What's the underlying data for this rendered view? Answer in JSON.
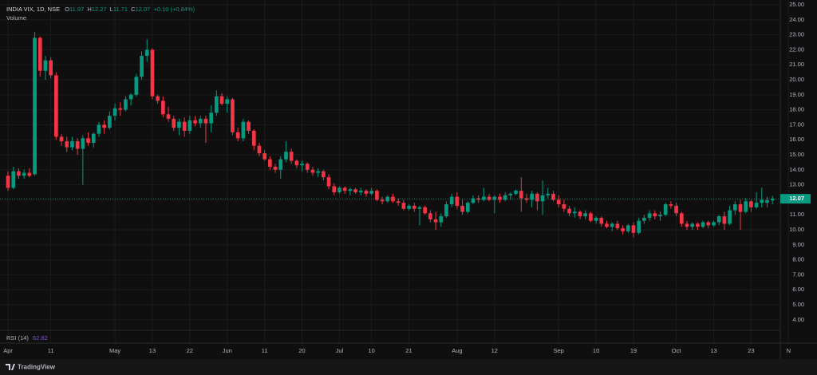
{
  "chart_data": {
    "type": "candlestick",
    "legend": {
      "symbol": "INDIA VIX, 1D, NSE",
      "open_label": "O",
      "high_label": "H",
      "low_label": "L",
      "close_label": "C",
      "change": "+0.10 (+0.84%)",
      "volume": "Volume"
    },
    "rsi": {
      "label": "RSI (14)",
      "value": 62.82
    },
    "brand": "TradingView",
    "up_color": "#089981",
    "down_color": "#f23645",
    "grid": true,
    "xlim": [
      -1.5,
      147
    ],
    "ylim": [
      3.35,
      25.32
    ],
    "yticks": [
      {
        "value": 4,
        "label": "4.00"
      },
      {
        "value": 5,
        "label": "5.00"
      },
      {
        "value": 6,
        "label": "6.00"
      },
      {
        "value": 7,
        "label": "7.00"
      },
      {
        "value": 8,
        "label": "8.00"
      },
      {
        "value": 9,
        "label": "9.00"
      },
      {
        "value": 10,
        "label": "10.00"
      },
      {
        "value": 11,
        "label": "11.00"
      },
      {
        "value": 12,
        "label": "12.00"
      },
      {
        "value": 13,
        "label": "13.00"
      },
      {
        "value": 14,
        "label": "14.00"
      },
      {
        "value": 15,
        "label": "15.00"
      },
      {
        "value": 16,
        "label": "16.00"
      },
      {
        "value": 17,
        "label": "17.00"
      },
      {
        "value": 18,
        "label": "18.00"
      },
      {
        "value": 19,
        "label": "19.00"
      },
      {
        "value": 20,
        "label": "20.00"
      },
      {
        "value": 21,
        "label": "21.00"
      },
      {
        "value": 22,
        "label": "22.00"
      },
      {
        "value": 23,
        "label": "23.00"
      },
      {
        "value": 24,
        "label": "24.00"
      },
      {
        "value": 25,
        "label": "25.00"
      }
    ],
    "xticks": [
      {
        "value": 0,
        "label": "Apr"
      },
      {
        "value": 8,
        "label": "11"
      },
      {
        "value": 20,
        "label": "May"
      },
      {
        "value": 27,
        "label": "13"
      },
      {
        "value": 34,
        "label": "22"
      },
      {
        "value": 41,
        "label": "Jun"
      },
      {
        "value": 48,
        "label": "11"
      },
      {
        "value": 55,
        "label": "20"
      },
      {
        "value": 62,
        "label": "Jul"
      },
      {
        "value": 68,
        "label": "10"
      },
      {
        "value": 75,
        "label": "21"
      },
      {
        "value": 84,
        "label": "Aug"
      },
      {
        "value": 91,
        "label": "12"
      },
      {
        "value": 103,
        "label": "Sep"
      },
      {
        "value": 110,
        "label": "10"
      },
      {
        "value": 117,
        "label": "19"
      },
      {
        "value": 125,
        "label": "Oct"
      },
      {
        "value": 132,
        "label": "13"
      },
      {
        "value": 139,
        "label": "23"
      },
      {
        "value": 146,
        "label": "N"
      }
    ],
    "open": [
      13.6,
      12.8,
      13.9,
      13.6,
      13.8,
      13.7,
      22.8,
      20.6,
      21.3,
      20.3,
      16.2,
      15.9,
      15.5,
      15.9,
      15.4,
      16.1,
      15.8,
      16.4,
      17.0,
      16.8,
      17.6,
      18.1,
      18.0,
      18.7,
      19.0,
      20.2,
      21.6,
      22.0,
      18.9,
      18.6,
      17.7,
      17.4,
      16.8,
      17.2,
      16.6,
      17.3,
      17.1,
      17.4,
      17.1,
      17.8,
      18.9,
      18.4,
      18.7,
      16.5,
      16.1,
      17.2,
      16.6,
      15.6,
      15.1,
      14.7,
      14.2,
      14.0,
      14.7,
      15.2,
      14.6,
      14.3,
      14.4,
      14.0,
      13.8,
      13.9,
      13.5,
      12.9,
      12.5,
      12.8,
      12.6,
      12.7,
      12.5,
      12.6,
      12.4,
      12.6,
      12.0,
      11.9,
      12.2,
      11.9,
      11.8,
      11.4,
      11.6,
      11.4,
      11.5,
      11.1,
      10.7,
      10.5,
      10.9,
      11.7,
      12.2,
      11.6,
      11.2,
      11.8,
      12.1,
      12.0,
      12.2,
      12.0,
      12.2,
      12.0,
      12.3,
      12.4,
      12.6,
      12.1,
      12.0,
      12.4,
      11.9,
      12.3,
      12.4,
      12.0,
      11.7,
      11.4,
      11.1,
      11.2,
      10.9,
      11.1,
      10.6,
      10.8,
      10.4,
      10.2,
      10.4,
      10.1,
      9.9,
      10.3,
      9.8,
      10.6,
      10.8,
      11.1,
      10.9,
      11.0,
      11.7,
      11.6,
      11.1,
      10.4,
      10.2,
      10.4,
      10.2,
      10.5,
      10.3,
      10.5,
      10.9,
      10.4,
      11.3,
      11.7,
      11.2,
      11.9,
      11.5,
      11.8,
      11.8,
      11.97
    ],
    "high": [
      13.9,
      14.2,
      14.1,
      14.0,
      14.1,
      23.2,
      22.9,
      21.6,
      21.5,
      20.5,
      16.4,
      16.2,
      16.2,
      16.1,
      16.3,
      16.5,
      16.5,
      17.2,
      17.3,
      17.9,
      18.4,
      18.5,
      18.9,
      19.1,
      20.4,
      21.9,
      22.7,
      22.1,
      19.0,
      18.9,
      18.2,
      17.6,
      17.4,
      17.5,
      17.6,
      17.6,
      17.6,
      17.6,
      18.3,
      19.3,
      19.1,
      18.9,
      18.8,
      16.8,
      17.4,
      17.3,
      16.7,
      15.8,
      15.3,
      14.9,
      14.4,
      14.9,
      15.9,
      15.4,
      14.7,
      14.6,
      14.5,
      14.2,
      14.1,
      14.0,
      13.7,
      13.1,
      12.9,
      12.9,
      12.8,
      12.8,
      12.8,
      12.7,
      12.8,
      12.7,
      12.2,
      12.3,
      12.4,
      12.1,
      12.0,
      11.7,
      11.8,
      11.6,
      11.6,
      11.3,
      11.2,
      11.1,
      11.9,
      12.4,
      12.5,
      12.0,
      11.9,
      12.3,
      12.3,
      12.8,
      12.4,
      12.3,
      12.4,
      12.5,
      12.5,
      12.7,
      13.5,
      12.4,
      12.6,
      12.5,
      13.3,
      12.8,
      12.6,
      12.3,
      12.0,
      11.6,
      11.5,
      11.3,
      11.3,
      11.2,
      10.9,
      10.9,
      10.6,
      10.5,
      10.6,
      10.3,
      10.4,
      10.5,
      10.8,
      11.0,
      11.3,
      11.3,
      11.2,
      11.8,
      11.9,
      11.8,
      11.2,
      10.6,
      10.5,
      10.5,
      10.6,
      10.6,
      10.6,
      11.0,
      11.2,
      11.6,
      11.9,
      12.0,
      12.1,
      12.0,
      12.5,
      12.8,
      12.2,
      12.27
    ],
    "low": [
      12.6,
      12.7,
      13.4,
      13.4,
      13.5,
      13.6,
      20.2,
      20.0,
      20.1,
      16.0,
      15.6,
      15.2,
      15.3,
      15.0,
      13.0,
      15.6,
      15.5,
      16.2,
      16.4,
      16.7,
      17.3,
      17.6,
      17.9,
      18.3,
      18.9,
      20.0,
      21.2,
      18.7,
      18.4,
      17.5,
      17.2,
      16.6,
      16.3,
      16.2,
      16.4,
      16.9,
      16.8,
      15.8,
      16.5,
      17.6,
      18.3,
      17.8,
      16.3,
      15.9,
      15.9,
      16.4,
      15.3,
      14.9,
      14.6,
      14.0,
      13.8,
      13.4,
      14.5,
      14.4,
      14.1,
      13.9,
      13.8,
      13.6,
      13.5,
      13.3,
      12.7,
      12.3,
      12.4,
      12.4,
      12.3,
      12.4,
      12.3,
      12.2,
      12.3,
      11.9,
      11.7,
      11.8,
      11.8,
      11.6,
      11.3,
      11.3,
      11.2,
      10.3,
      11.0,
      10.5,
      10.0,
      10.2,
      10.8,
      11.5,
      11.4,
      11.0,
      11.1,
      11.7,
      11.8,
      11.9,
      11.9,
      11.1,
      11.8,
      11.9,
      12.0,
      12.3,
      11.2,
      11.8,
      11.5,
      11.3,
      11.0,
      12.1,
      11.9,
      11.5,
      11.2,
      10.9,
      10.8,
      10.7,
      10.7,
      10.5,
      10.4,
      10.2,
      10.1,
      9.9,
      10.0,
      9.7,
      9.8,
      9.5,
      9.7,
      10.4,
      10.6,
      10.7,
      10.6,
      10.9,
      11.4,
      10.9,
      10.2,
      10.0,
      10.0,
      10.0,
      10.1,
      10.1,
      10.2,
      10.3,
      10.0,
      10.3,
      11.0,
      10.0,
      11.1,
      11.2,
      11.4,
      11.5,
      11.5,
      11.71
    ],
    "close": [
      12.8,
      13.9,
      13.6,
      13.8,
      13.6,
      22.8,
      20.6,
      21.3,
      20.3,
      16.2,
      15.9,
      15.5,
      15.9,
      15.4,
      16.1,
      15.8,
      16.4,
      17.0,
      16.8,
      17.6,
      18.1,
      18.0,
      18.7,
      19.0,
      20.2,
      21.6,
      22.0,
      18.9,
      18.6,
      17.7,
      17.4,
      16.8,
      17.2,
      16.6,
      17.3,
      17.1,
      17.4,
      17.1,
      17.8,
      18.9,
      18.4,
      18.7,
      16.5,
      16.1,
      17.2,
      16.6,
      15.6,
      15.1,
      14.7,
      14.2,
      14.0,
      14.7,
      15.2,
      14.6,
      14.3,
      14.4,
      14.0,
      13.8,
      13.9,
      13.5,
      12.9,
      12.5,
      12.8,
      12.6,
      12.7,
      12.5,
      12.6,
      12.4,
      12.6,
      12.0,
      11.9,
      12.2,
      11.9,
      11.8,
      11.4,
      11.6,
      11.4,
      11.5,
      11.1,
      10.7,
      10.5,
      10.9,
      11.7,
      12.2,
      11.6,
      11.2,
      11.8,
      12.1,
      12.0,
      12.2,
      12.0,
      12.2,
      12.0,
      12.3,
      12.4,
      12.6,
      12.1,
      12.0,
      12.4,
      11.9,
      12.3,
      12.4,
      12.0,
      11.7,
      11.4,
      11.1,
      11.2,
      10.9,
      11.1,
      10.6,
      10.8,
      10.4,
      10.2,
      10.4,
      10.1,
      9.9,
      10.3,
      9.8,
      10.6,
      10.8,
      11.1,
      10.9,
      11.0,
      11.7,
      11.6,
      11.1,
      10.4,
      10.2,
      10.4,
      10.2,
      10.5,
      10.3,
      10.5,
      10.9,
      10.4,
      11.3,
      11.7,
      11.2,
      11.9,
      11.5,
      11.8,
      12.0,
      11.97,
      12.07
    ]
  }
}
